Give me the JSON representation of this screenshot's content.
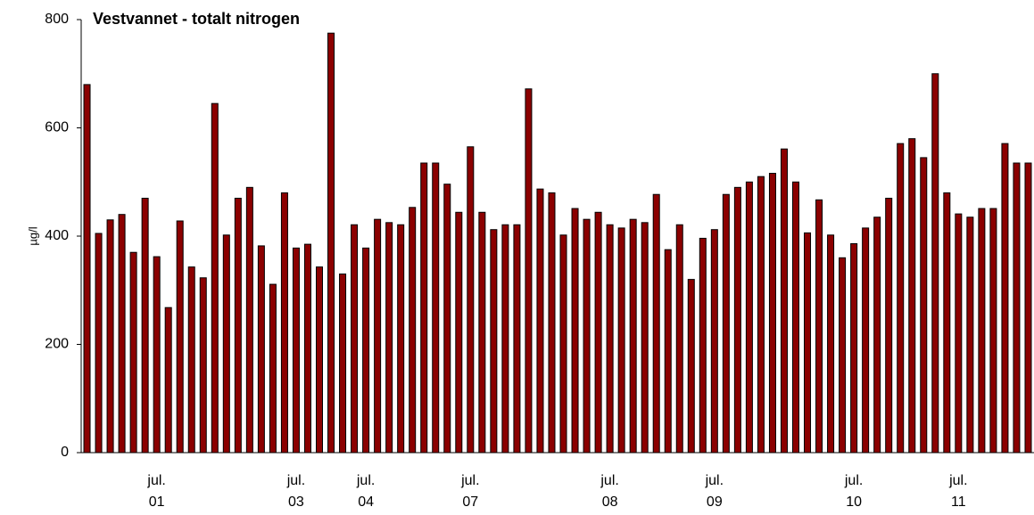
{
  "chart_data": {
    "type": "bar",
    "title": "Vestvannet - totalt nitrogen",
    "y_label": "µg/l",
    "categories": [
      null,
      null,
      null,
      null,
      null,
      null,
      "jul.\n01",
      null,
      null,
      null,
      null,
      null,
      null,
      null,
      null,
      null,
      null,
      null,
      "jul.\n03",
      null,
      null,
      null,
      null,
      null,
      "jul.\n04",
      null,
      null,
      null,
      null,
      null,
      null,
      null,
      null,
      "jul.\n07",
      null,
      null,
      null,
      null,
      null,
      null,
      null,
      null,
      null,
      null,
      null,
      "jul.\n08",
      null,
      null,
      null,
      null,
      null,
      null,
      null,
      null,
      "jul.\n09",
      null,
      null,
      null,
      null,
      null,
      null,
      null,
      null,
      null,
      null,
      null,
      "jul.\n10",
      null,
      null,
      null,
      null,
      null,
      null,
      null,
      null,
      "jul.\n11",
      null,
      null,
      null,
      null,
      null,
      null
    ],
    "values": [
      680,
      405,
      430,
      440,
      370,
      470,
      362,
      268,
      428,
      343,
      323,
      645,
      402,
      470,
      490,
      382,
      311,
      480,
      378,
      385,
      343,
      775,
      330,
      421,
      378,
      431,
      425,
      421,
      453,
      535,
      535,
      496,
      444,
      565,
      444,
      412,
      421,
      421,
      672,
      487,
      480,
      402,
      451,
      431,
      444,
      421,
      415,
      431,
      425,
      477,
      375,
      421,
      320,
      396,
      412,
      477,
      490,
      500,
      510,
      516,
      561,
      500,
      406,
      467,
      402,
      360,
      386,
      415,
      435,
      470,
      571,
      580,
      545,
      700,
      480,
      441,
      435,
      451,
      451,
      571,
      535,
      535
    ],
    "color": "#8b0000",
    "ylim": [
      0,
      800
    ],
    "yticks": [
      0,
      200,
      400,
      600,
      800
    ],
    "grid": false
  }
}
